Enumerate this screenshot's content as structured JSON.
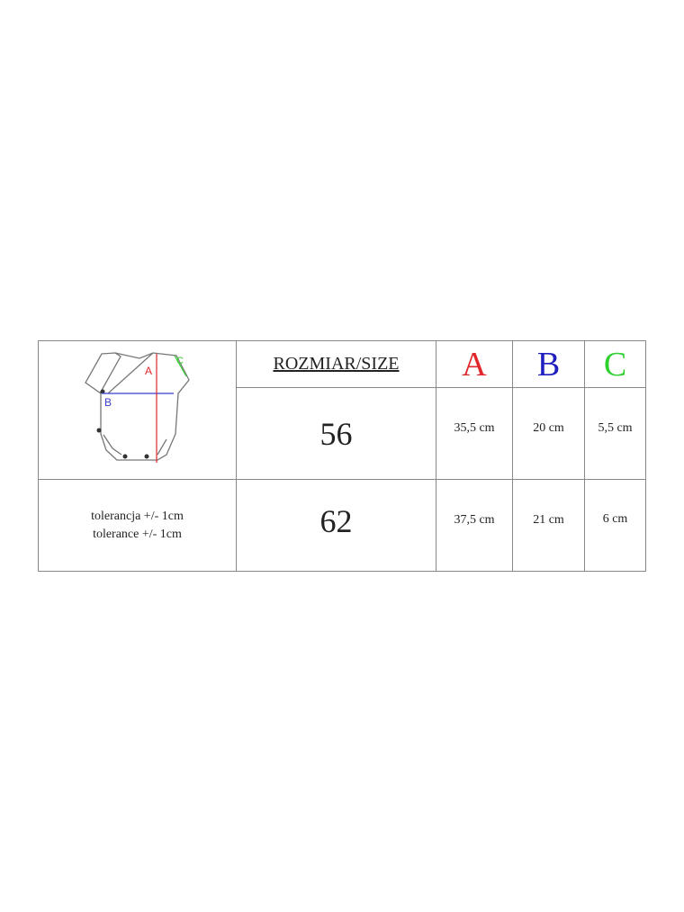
{
  "diagram": {
    "labels": {
      "a": "A",
      "b": "B",
      "c": "C"
    }
  },
  "header": {
    "size_label": "ROZMIAR/SIZE",
    "a": "A",
    "b": "B",
    "c": "C"
  },
  "colors": {
    "a": "#e0262b",
    "b": "#1f1fc0",
    "c": "#2fd02f"
  },
  "rows": [
    {
      "size": "56",
      "a": "35,5 cm",
      "b": "20 cm",
      "c": "5,5 cm"
    },
    {
      "size": "62",
      "a": "37,5 cm",
      "b": "21 cm",
      "c": "6 cm"
    }
  ],
  "tolerance": {
    "pl": "tolerancja +/- 1cm",
    "en": "tolerance +/- 1cm"
  }
}
